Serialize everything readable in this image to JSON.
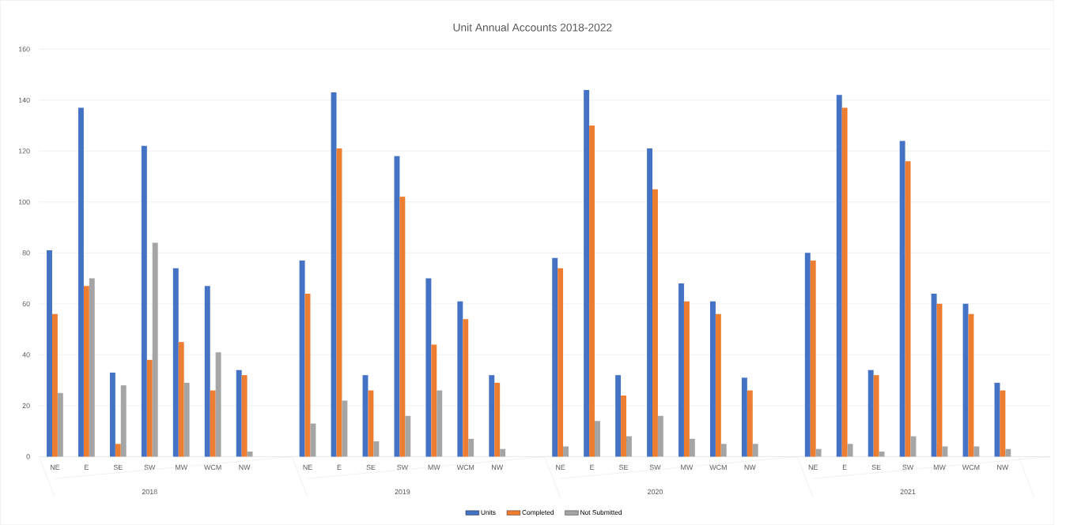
{
  "chart_data": {
    "type": "bar",
    "title": "Unit Annual Accounts 2018-2022",
    "categories": [
      "NE",
      "E",
      "SE",
      "SW",
      "MW",
      "WCM",
      "NW",
      null,
      "NE",
      "E",
      "SE",
      "SW",
      "MW",
      "WCM",
      "NW",
      null,
      "NE",
      "E",
      "SE",
      "SW",
      "MW",
      "WCM",
      "NW",
      null,
      "NE",
      "E",
      "SE",
      "SW",
      "MW",
      "WCM",
      "NW",
      null
    ],
    "series": [
      {
        "name": "Units",
        "color": "#4472c4",
        "values": [
          81,
          137,
          33,
          122,
          74,
          67,
          34,
          null,
          77,
          143,
          32,
          118,
          70,
          61,
          32,
          null,
          78,
          144,
          32,
          121,
          68,
          61,
          31,
          null,
          80,
          142,
          34,
          124,
          64,
          60,
          29,
          null
        ]
      },
      {
        "name": "Completed",
        "color": "#ed7d31",
        "values": [
          56,
          67,
          5,
          38,
          45,
          26,
          32,
          null,
          64,
          121,
          26,
          102,
          44,
          54,
          29,
          null,
          74,
          130,
          24,
          105,
          61,
          56,
          26,
          null,
          77,
          137,
          32,
          116,
          60,
          56,
          26,
          null
        ]
      },
      {
        "name": "Not Submitted",
        "color": "#a5a5a5",
        "values": [
          25,
          70,
          28,
          84,
          29,
          41,
          2,
          null,
          13,
          22,
          6,
          16,
          26,
          7,
          3,
          null,
          4,
          14,
          8,
          16,
          7,
          5,
          5,
          null,
          3,
          5,
          2,
          8,
          4,
          4,
          3,
          null
        ]
      }
    ],
    "annotations": [
      "2018",
      "2019",
      "2020",
      "2021"
    ],
    "ylim": [
      0,
      160
    ],
    "yticks": [
      0,
      20,
      40,
      60,
      80,
      100,
      120,
      140,
      160
    ],
    "grid": "y",
    "legend": "bottom"
  }
}
